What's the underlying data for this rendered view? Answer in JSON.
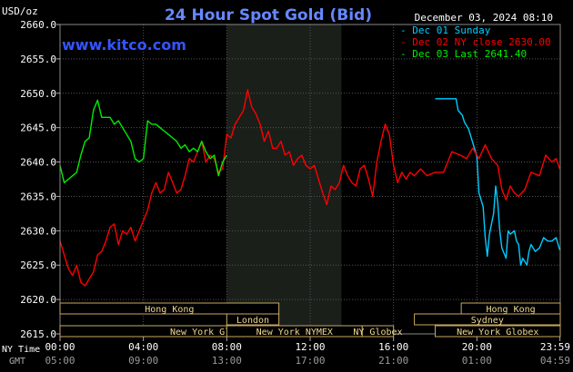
{
  "chart_data": {
    "type": "line",
    "title": "24 Hour Spot Gold (Bid)",
    "watermark": "www.kitco.com",
    "timestamp": "December 03, 2024 08:10",
    "ylabel": "USD/oz",
    "ylim": [
      2615.0,
      2660.0
    ],
    "yticks": [
      "2615.0",
      "2620.0",
      "2625.0",
      "2630.0",
      "2635.0",
      "2640.0",
      "2645.0",
      "2650.0",
      "2655.0",
      "2660.0"
    ],
    "xlim": [
      0,
      24
    ],
    "x_tick_hours": [
      0,
      4,
      8,
      12,
      16,
      20,
      23.983
    ],
    "xticks_ny": [
      "00:00",
      "04:00",
      "08:00",
      "12:00",
      "16:00",
      "20:00",
      "23:59"
    ],
    "xticks_gmt": [
      "05:00",
      "09:00",
      "13:00",
      "17:00",
      "21:00",
      "01:00",
      "04:59"
    ],
    "axis_row_labels": {
      "ny": "NY Time",
      "gmt": "GMT"
    },
    "shaded_region": [
      8,
      13.5
    ],
    "sessions": [
      {
        "label": "Hong Kong",
        "start": 0,
        "end": 10.5,
        "row": 0
      },
      {
        "label": "Hong Kong",
        "start": 19.25,
        "end": 24,
        "row": 0
      },
      {
        "label": "London",
        "start": 8,
        "end": 10.5,
        "row": 1
      },
      {
        "label": "Sydney",
        "start": 17,
        "end": 24,
        "row": 1
      },
      {
        "label": "New York Globex",
        "start": 0,
        "end": 14.5,
        "row": 2
      },
      {
        "label": "New York NYMEX",
        "start": 8,
        "end": 14.5,
        "row": 2
      },
      {
        "label": "NY Globex",
        "start": 14.5,
        "end": 16,
        "row": 2
      },
      {
        "label": "New York Globex",
        "start": 18,
        "end": 24,
        "row": 2
      }
    ],
    "series": [
      {
        "name": "Dec 01 Sunday",
        "color": "#00ccff",
        "x": [
          18.0,
          18.4,
          18.8,
          19.0,
          19.1,
          19.3,
          19.4,
          19.6,
          19.8,
          20.0,
          20.1,
          20.3,
          20.4,
          20.5,
          20.6,
          20.8,
          20.9,
          21.0,
          21.1,
          21.2,
          21.4,
          21.5,
          21.6,
          21.8,
          21.9,
          22.0,
          22.1,
          22.2,
          22.4,
          22.5,
          22.6,
          22.8,
          23.0,
          23.2,
          23.4,
          23.6,
          23.8,
          23.98
        ],
        "y": [
          2649.2,
          2649.2,
          2649.2,
          2649.2,
          2647.5,
          2646.8,
          2645.8,
          2644.8,
          2642.8,
          2640.8,
          2635.5,
          2633.5,
          2629.0,
          2626.3,
          2629.5,
          2632.5,
          2636.5,
          2634.0,
          2630.0,
          2627.5,
          2626.0,
          2630.0,
          2629.5,
          2630.0,
          2628.5,
          2628.0,
          2625.0,
          2626.0,
          2625.0,
          2627.0,
          2628.0,
          2627.0,
          2627.5,
          2629.0,
          2628.5,
          2628.5,
          2629.0,
          2627.2
        ]
      },
      {
        "name": "Dec 02 NY close 2630.00",
        "color": "#ff0000",
        "x": [
          0.0,
          0.2,
          0.4,
          0.6,
          0.8,
          1.0,
          1.2,
          1.4,
          1.6,
          1.8,
          2.0,
          2.2,
          2.4,
          2.6,
          2.8,
          3.0,
          3.2,
          3.4,
          3.6,
          3.8,
          4.0,
          4.2,
          4.4,
          4.6,
          4.8,
          5.0,
          5.2,
          5.4,
          5.6,
          5.8,
          6.0,
          6.2,
          6.4,
          6.6,
          6.8,
          7.0,
          7.2,
          7.4,
          7.6,
          7.8,
          8.0,
          8.2,
          8.4,
          8.6,
          8.8,
          9.0,
          9.2,
          9.4,
          9.6,
          9.8,
          10.0,
          10.2,
          10.4,
          10.6,
          10.8,
          11.0,
          11.2,
          11.4,
          11.6,
          11.8,
          12.0,
          12.2,
          12.4,
          12.6,
          12.8,
          13.0,
          13.2,
          13.4,
          13.6,
          13.8,
          14.0,
          14.2,
          14.4,
          14.6,
          14.8,
          15.0,
          15.2,
          15.4,
          15.6,
          15.8,
          16.0,
          16.2,
          16.4,
          16.6,
          16.8,
          17.0,
          17.3,
          17.6,
          18.0,
          18.4,
          18.8,
          19.2,
          19.5,
          19.8,
          20.1,
          20.4,
          20.7,
          21.0,
          21.2,
          21.4,
          21.6,
          21.8,
          22.0,
          22.3,
          22.6,
          23.0,
          23.3,
          23.6,
          23.8,
          23.98
        ],
        "y": [
          2628.5,
          2626.5,
          2624.5,
          2623.5,
          2625.0,
          2622.5,
          2622.0,
          2623.0,
          2624.0,
          2626.5,
          2627.0,
          2628.5,
          2630.5,
          2631.0,
          2628.0,
          2630.0,
          2629.5,
          2630.5,
          2628.5,
          2630.0,
          2631.5,
          2633.0,
          2635.5,
          2637.0,
          2635.5,
          2636.0,
          2638.5,
          2637.0,
          2635.5,
          2636.0,
          2638.0,
          2640.5,
          2640.0,
          2641.5,
          2643.0,
          2640.0,
          2641.0,
          2640.5,
          2638.5,
          2639.0,
          2644.0,
          2643.5,
          2645.5,
          2646.5,
          2647.5,
          2650.5,
          2648.0,
          2647.0,
          2645.5,
          2643.0,
          2644.5,
          2642.0,
          2642.0,
          2643.0,
          2641.0,
          2641.5,
          2639.5,
          2640.5,
          2641.0,
          2639.5,
          2639.0,
          2639.5,
          2637.5,
          2635.5,
          2633.8,
          2636.5,
          2636.0,
          2637.0,
          2639.5,
          2638.0,
          2637.0,
          2636.5,
          2639.0,
          2639.5,
          2637.5,
          2635.0,
          2640.0,
          2643.0,
          2645.5,
          2644.0,
          2639.5,
          2637.0,
          2638.5,
          2637.5,
          2638.5,
          2638.0,
          2639.0,
          2638.0,
          2638.5,
          2638.5,
          2641.5,
          2641.0,
          2640.5,
          2642.0,
          2640.5,
          2642.5,
          2640.5,
          2639.5,
          2636.0,
          2634.5,
          2636.5,
          2635.5,
          2635.0,
          2636.0,
          2638.5,
          2638.0,
          2641.0,
          2640.0,
          2640.5,
          2639.0
        ]
      },
      {
        "name": "Dec 03 Last 2641.40",
        "color": "#00ee00",
        "x": [
          0.0,
          0.2,
          0.4,
          0.6,
          0.8,
          1.0,
          1.2,
          1.4,
          1.6,
          1.8,
          2.0,
          2.2,
          2.4,
          2.6,
          2.8,
          3.0,
          3.2,
          3.4,
          3.6,
          3.8,
          4.0,
          4.2,
          4.4,
          4.6,
          4.8,
          5.0,
          5.2,
          5.4,
          5.6,
          5.8,
          6.0,
          6.2,
          6.4,
          6.6,
          6.8,
          7.0,
          7.2,
          7.4,
          7.6,
          7.8,
          8.0
        ],
        "y": [
          2639.5,
          2637.0,
          2637.5,
          2638.0,
          2638.5,
          2641.0,
          2643.0,
          2643.5,
          2647.5,
          2649.0,
          2646.5,
          2646.5,
          2646.5,
          2645.5,
          2646.0,
          2645.0,
          2644.0,
          2643.0,
          2640.5,
          2640.0,
          2640.5,
          2646.0,
          2645.5,
          2645.5,
          2645.0,
          2644.5,
          2644.0,
          2643.5,
          2643.0,
          2642.0,
          2642.5,
          2641.5,
          2642.0,
          2641.5,
          2643.0,
          2641.5,
          2640.5,
          2641.0,
          2638.0,
          2640.0,
          2641.0
        ]
      }
    ]
  }
}
